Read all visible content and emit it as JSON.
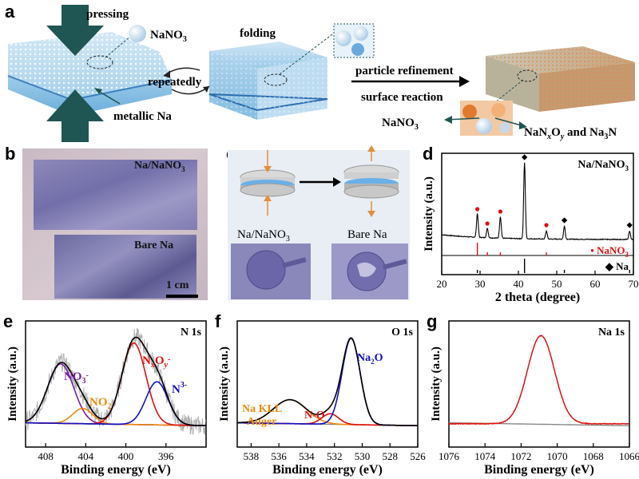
{
  "panel_labels": {
    "a": "a",
    "b": "b",
    "c": "c",
    "d": "d",
    "e": "e",
    "f": "f",
    "g": "g"
  },
  "panel_a": {
    "pressing": "pressing",
    "nano3_particle": "NaNO",
    "nano3_sub": "3",
    "folding": "folding",
    "repeatedly": "repeatedly",
    "metallic_na": "metallic Na",
    "particle_refinement": "particle refinement",
    "surface_reaction": "surface reaction",
    "product_nano3": "NaNO",
    "product_nano3_sub": "3",
    "product_naxoy_1": "NaN",
    "product_naxoy_x": "x",
    "product_naxoy_2": "O",
    "product_naxoy_y": "y",
    "product_and": " and Na",
    "product_na3n_sub": "3",
    "product_na3n_end": "N"
  },
  "panel_b": {
    "top_label": "Na/NaNO",
    "top_label_sub": "3",
    "bottom_label": "Bare Na",
    "scale": "1 cm"
  },
  "panel_c": {
    "left_label": "Na/NaNO",
    "left_label_sub": "3",
    "right_label": "Bare Na"
  },
  "colors": {
    "red": "#e01010",
    "blue": "#1010c0",
    "purple": "#7a1fa2",
    "orange": "#f08a10",
    "gray": "#b0b0b0",
    "black": "#000000",
    "dark_teal": "#1f5552"
  },
  "chart_data": [
    {
      "id": "d",
      "type": "line",
      "title": "",
      "xlabel": "2 theta (degree)",
      "ylabel": "Intensity (a.u.)",
      "xlim": [
        20,
        70
      ],
      "xticks": [
        20,
        30,
        40,
        50,
        60,
        70
      ],
      "legend": "Na/NaNO3",
      "series": [
        {
          "name": "Na/NaNO3",
          "peaks_x": [
            29.3,
            31.9,
            35.3,
            41.6,
            47.3,
            52.0,
            69.0
          ],
          "peaks_h": [
            0.3,
            0.12,
            0.27,
            0.95,
            0.1,
            0.16,
            0.1
          ]
        }
      ],
      "reference_nano3": {
        "name": "NaNO",
        "sub": "3",
        "x": [
          29.3,
          31.9,
          35.3,
          47.3
        ]
      },
      "reference_na": {
        "name": "Na",
        "x": [
          29.3,
          41.6,
          52.0,
          69.0
        ]
      }
    },
    {
      "id": "e",
      "type": "line",
      "title": "N 1s",
      "xlabel": "Binding energy (eV)",
      "ylabel": "Intensity (a.u.)",
      "xlim": [
        410,
        392
      ],
      "xticks": [
        408,
        404,
        400,
        396
      ],
      "components": [
        {
          "name": "NO3-",
          "center": 406.5,
          "height": 0.62,
          "width": 1.3,
          "color": "#7a1fa2"
        },
        {
          "name": "NO2-",
          "center": 404.3,
          "height": 0.16,
          "width": 1.0,
          "color": "#f08a10"
        },
        {
          "name": "NxOy-",
          "center": 399.2,
          "height": 0.85,
          "width": 1.2,
          "color": "#e01010"
        },
        {
          "name": "N3-",
          "center": 396.9,
          "height": 0.45,
          "width": 1.1,
          "color": "#1010c0"
        }
      ]
    },
    {
      "id": "f",
      "type": "line",
      "title": "O 1s",
      "xlabel": "Binding energy (eV)",
      "ylabel": "Intensity (a.u.)",
      "xlim": [
        539,
        526
      ],
      "xticks": [
        538,
        536,
        534,
        532,
        530,
        528,
        526
      ],
      "components": [
        {
          "name": "Na KLL Auger",
          "center": 535.2,
          "height": 0.25,
          "width": 1.2,
          "color": "#f08a10"
        },
        {
          "name": "N-O",
          "center": 532.3,
          "height": 0.11,
          "width": 0.6,
          "color": "#e01010"
        },
        {
          "name": "Na2O",
          "center": 530.8,
          "height": 0.9,
          "width": 0.65,
          "color": "#1010c0"
        }
      ]
    },
    {
      "id": "g",
      "type": "line",
      "title": "Na 1s",
      "xlabel": "Binding energy (eV)",
      "ylabel": "Intensity (a.u.)",
      "xlim": [
        1076,
        1066
      ],
      "xticks": [
        1076,
        1074,
        1072,
        1070,
        1068,
        1066
      ],
      "series": [
        {
          "name": "Na 1s",
          "center": 1070.9,
          "height": 0.92,
          "width": 0.75,
          "color": "#e01010"
        }
      ]
    }
  ],
  "panel_e_labels": {
    "no3": "NO",
    "no3_sub": "3",
    "no3_sup": "-",
    "no2": "NO",
    "no2_sub": "2",
    "nxoy": "N",
    "nxoy_x": "x",
    "nxoy_o": "O",
    "nxoy_y": "y",
    "nxoy_sup": "-",
    "n3": "N",
    "n3_sup": "3-"
  },
  "panel_f_labels": {
    "na_kll": "Na KLL",
    "auger": "Auger",
    "no": "N-O",
    "na2o": "Na",
    "na2o_sub": "2",
    "na2o_o": "O"
  }
}
